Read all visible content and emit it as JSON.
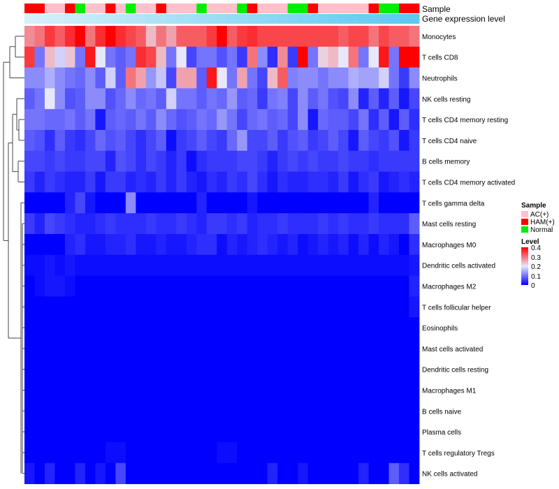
{
  "chart_data": {
    "type": "heatmap",
    "title": "",
    "annotation_labels": {
      "sample": "Sample",
      "gene_level": "Gene expression level"
    },
    "sample_colors": {
      "AC(+)": "#FFC0CB",
      "HAM(+)": "#FF0000",
      "Normal": "#00EE00"
    },
    "level_colors": {
      "low": "#0000FF",
      "mid": "#E8E8F8",
      "high": "#FF0000"
    },
    "gene_level_gradient": [
      "#D6F0FA",
      "#5DC8F0"
    ],
    "samples": [
      "HAM(+)",
      "HAM(+)",
      "AC(+)",
      "AC(+)",
      "HAM(+)",
      "Normal",
      "AC(+)",
      "AC(+)",
      "HAM(+)",
      "AC(+)",
      "Normal",
      "AC(+)",
      "AC(+)",
      "HAM(+)",
      "AC(+)",
      "AC(+)",
      "AC(+)",
      "Normal",
      "AC(+)",
      "AC(+)",
      "AC(+)",
      "Normal",
      "HAM(+)",
      "AC(+)",
      "AC(+)",
      "AC(+)",
      "Normal",
      "Normal",
      "HAM(+)",
      "AC(+)",
      "AC(+)",
      "AC(+)",
      "AC(+)",
      "AC(+)",
      "HAM(+)",
      "Normal",
      "Normal",
      "HAM(+)",
      "HAM(+)"
    ],
    "rows": [
      {
        "name": "Monocytes",
        "values": [
          0.28,
          0.3,
          0.35,
          0.32,
          0.36,
          0.4,
          0.3,
          0.36,
          0.4,
          0.36,
          0.34,
          0.32,
          0.24,
          0.3,
          0.26,
          0.32,
          0.32,
          0.32,
          0.35,
          0.4,
          0.32,
          0.35,
          0.36,
          0.34,
          0.34,
          0.34,
          0.34,
          0.34,
          0.34,
          0.34,
          0.34,
          0.32,
          0.34,
          0.34,
          0.3,
          0.34,
          0.32,
          0.32,
          0.3
        ]
      },
      {
        "name": "T cells CD8",
        "values": [
          0.35,
          0.1,
          0.24,
          0.18,
          0.23,
          0.1,
          0.38,
          0.2,
          0.1,
          0.08,
          0.1,
          0.36,
          0.34,
          0.24,
          0.1,
          0.2,
          0.06,
          0.1,
          0.1,
          0.07,
          0.1,
          0.05,
          0.3,
          0.12,
          0.04,
          0.28,
          0.05,
          0.4,
          0.1,
          0.22,
          0.24,
          0.2,
          0.3,
          0.1,
          0.2,
          0.38,
          0.1,
          0.4,
          0.4
        ]
      },
      {
        "name": "Neutrophils",
        "values": [
          0.12,
          0.12,
          0.15,
          0.12,
          0.1,
          0.09,
          0.12,
          0.08,
          0.18,
          0.08,
          0.3,
          0.26,
          0.13,
          0.17,
          0.06,
          0.26,
          0.26,
          0.08,
          0.38,
          0.2,
          0.1,
          0.26,
          0.1,
          0.06,
          0.24,
          0.32,
          0.11,
          0.12,
          0.12,
          0.1,
          0.12,
          0.12,
          0.15,
          0.14,
          0.14,
          0.18,
          0.1,
          0.05,
          0.12
        ]
      },
      {
        "name": "NK cells resting",
        "values": [
          0.08,
          0.1,
          0.2,
          0.12,
          0.07,
          0.08,
          0.12,
          0.12,
          0.07,
          0.09,
          0.12,
          0.09,
          0.1,
          0.08,
          0.18,
          0.1,
          0.1,
          0.08,
          0.1,
          0.09,
          0.13,
          0.08,
          0.09,
          0.05,
          0.1,
          0.11,
          0.06,
          0.12,
          0.08,
          0.1,
          0.07,
          0.06,
          0.12,
          0.03,
          0.08,
          0.03,
          0.08,
          0.02,
          0.06
        ]
      },
      {
        "name": "T cells CD4 memory resting",
        "values": [
          0.1,
          0.1,
          0.09,
          0.09,
          0.1,
          0.08,
          0.1,
          0.02,
          0.08,
          0.09,
          0.08,
          0.1,
          0.08,
          0.12,
          0.09,
          0.07,
          0.08,
          0.1,
          0.09,
          0.13,
          0.1,
          0.06,
          0.09,
          0.1,
          0.08,
          0.09,
          0.06,
          0.12,
          0.02,
          0.09,
          0.08,
          0.08,
          0.06,
          0.1,
          0.04,
          0.08,
          0.02,
          0.08,
          0.04
        ]
      },
      {
        "name": "T cells CD4 naive",
        "values": [
          0.08,
          0.07,
          0.04,
          0.08,
          0.05,
          0.04,
          0.06,
          0.09,
          0.07,
          0.08,
          0.06,
          0.04,
          0.06,
          0.08,
          0.01,
          0.05,
          0.06,
          0.08,
          0.06,
          0.05,
          0.09,
          0.13,
          0.06,
          0.06,
          0.08,
          0.05,
          0.07,
          0.08,
          0.05,
          0.06,
          0.08,
          0.06,
          0.02,
          0.08,
          0.06,
          0.05,
          0.07,
          0.02,
          0.05
        ]
      },
      {
        "name": "B cells memory",
        "values": [
          0.06,
          0.06,
          0.05,
          0.06,
          0.05,
          0.05,
          0.06,
          0.06,
          0.03,
          0.07,
          0.06,
          0.04,
          0.06,
          0.05,
          0.03,
          0.05,
          0.01,
          0.04,
          0.05,
          0.05,
          0.05,
          0.06,
          0.06,
          0.05,
          0.03,
          0.05,
          0.06,
          0.05,
          0.06,
          0.05,
          0.05,
          0.06,
          0.05,
          0.05,
          0.04,
          0.05,
          0.05,
          0.05,
          0.05
        ]
      },
      {
        "name": "T cells CD4 memory activated",
        "values": [
          0.05,
          0.03,
          0.05,
          0.04,
          0.03,
          0.03,
          0.05,
          0.02,
          0.05,
          0.05,
          0.03,
          0.04,
          0.03,
          0.05,
          0.03,
          0.05,
          0.03,
          0.02,
          0.04,
          0.03,
          0.05,
          0.04,
          0.06,
          0.04,
          0.02,
          0.04,
          0.03,
          0.03,
          0.04,
          0.04,
          0.03,
          0.05,
          0.02,
          0.04,
          0.05,
          0.02,
          0.03,
          0.04,
          0.03
        ]
      },
      {
        "name": "T cells gamma delta",
        "values": [
          0.0,
          0.0,
          0.0,
          0.0,
          0.03,
          0.06,
          0.02,
          0.0,
          0.0,
          0.0,
          0.12,
          0.0,
          0.0,
          0.0,
          0.0,
          0.0,
          0.0,
          0.03,
          0.0,
          0.0,
          0.0,
          0.0,
          0.02,
          0.0,
          0.0,
          0.0,
          0.0,
          0.0,
          0.0,
          0.0,
          0.0,
          0.0,
          0.0,
          0.0,
          0.03,
          0.0,
          0.0,
          0.0,
          0.0
        ]
      },
      {
        "name": "Mast cells resting",
        "values": [
          0.05,
          0.03,
          0.06,
          0.05,
          0.04,
          0.03,
          0.03,
          0.04,
          0.05,
          0.04,
          0.04,
          0.04,
          0.05,
          0.04,
          0.04,
          0.05,
          0.04,
          0.03,
          0.05,
          0.05,
          0.04,
          0.05,
          0.03,
          0.04,
          0.04,
          0.05,
          0.04,
          0.04,
          0.04,
          0.05,
          0.04,
          0.05,
          0.04,
          0.04,
          0.05,
          0.04,
          0.04,
          0.04,
          0.08
        ]
      },
      {
        "name": "Macrophages M0",
        "values": [
          0.0,
          0.0,
          0.0,
          0.0,
          0.03,
          0.04,
          0.02,
          0.02,
          0.03,
          0.03,
          0.04,
          0.02,
          0.02,
          0.03,
          0.02,
          0.02,
          0.03,
          0.04,
          0.04,
          0.01,
          0.03,
          0.02,
          0.03,
          0.04,
          0.03,
          0.02,
          0.03,
          0.01,
          0.02,
          0.03,
          0.02,
          0.03,
          0.01,
          0.03,
          0.01,
          0.03,
          0.02,
          0.0,
          0.04
        ]
      },
      {
        "name": "Dendritic cells activated",
        "values": [
          0.01,
          0.01,
          0.02,
          0.01,
          0.02,
          0.01,
          0.01,
          0.01,
          0.01,
          0.01,
          0.01,
          0.01,
          0.01,
          0.01,
          0.01,
          0.01,
          0.01,
          0.01,
          0.01,
          0.01,
          0.01,
          0.01,
          0.01,
          0.01,
          0.01,
          0.01,
          0.01,
          0.01,
          0.01,
          0.01,
          0.01,
          0.01,
          0.01,
          0.01,
          0.01,
          0.01,
          0.01,
          0.01,
          0.02
        ]
      },
      {
        "name": "Macrophages M2",
        "values": [
          0.0,
          0.01,
          0.02,
          0.02,
          0.01,
          0.0,
          0.0,
          0.0,
          0.0,
          0.0,
          0.0,
          0.0,
          0.0,
          0.0,
          0.0,
          0.0,
          0.0,
          0.0,
          0.0,
          0.0,
          0.0,
          0.0,
          0.0,
          0.0,
          0.0,
          0.0,
          0.0,
          0.0,
          0.0,
          0.0,
          0.0,
          0.0,
          0.0,
          0.0,
          0.0,
          0.0,
          0.0,
          0.0,
          0.03
        ]
      },
      {
        "name": "T cells follicular helper",
        "values": [
          0.0,
          0.0,
          0.0,
          0.0,
          0.0,
          0.0,
          0.0,
          0.0,
          0.0,
          0.0,
          0.0,
          0.0,
          0.0,
          0.0,
          0.0,
          0.0,
          0.0,
          0.0,
          0.0,
          0.0,
          0.0,
          0.0,
          0.0,
          0.0,
          0.0,
          0.0,
          0.0,
          0.0,
          0.0,
          0.0,
          0.0,
          0.0,
          0.0,
          0.0,
          0.0,
          0.0,
          0.0,
          0.0,
          0.02
        ]
      },
      {
        "name": "Eosinophils",
        "values": [
          0.0,
          0.0,
          0.0,
          0.0,
          0.0,
          0.0,
          0.0,
          0.0,
          0.0,
          0.0,
          0.0,
          0.0,
          0.0,
          0.0,
          0.0,
          0.0,
          0.0,
          0.0,
          0.0,
          0.0,
          0.0,
          0.0,
          0.0,
          0.0,
          0.0,
          0.0,
          0.0,
          0.0,
          0.0,
          0.0,
          0.0,
          0.0,
          0.0,
          0.0,
          0.0,
          0.0,
          0.0,
          0.0,
          0.0
        ]
      },
      {
        "name": "Mast cells activated",
        "values": [
          0.0,
          0.0,
          0.0,
          0.0,
          0.0,
          0.0,
          0.0,
          0.0,
          0.0,
          0.0,
          0.0,
          0.0,
          0.0,
          0.0,
          0.0,
          0.0,
          0.0,
          0.0,
          0.0,
          0.0,
          0.0,
          0.0,
          0.0,
          0.0,
          0.0,
          0.0,
          0.0,
          0.0,
          0.0,
          0.0,
          0.0,
          0.0,
          0.0,
          0.0,
          0.0,
          0.0,
          0.0,
          0.0,
          0.0
        ]
      },
      {
        "name": "Dendritic cells resting",
        "values": [
          0.0,
          0.0,
          0.0,
          0.0,
          0.0,
          0.0,
          0.0,
          0.0,
          0.0,
          0.0,
          0.0,
          0.0,
          0.0,
          0.0,
          0.0,
          0.0,
          0.0,
          0.0,
          0.0,
          0.0,
          0.0,
          0.0,
          0.0,
          0.0,
          0.0,
          0.0,
          0.0,
          0.0,
          0.0,
          0.0,
          0.0,
          0.0,
          0.0,
          0.0,
          0.0,
          0.0,
          0.0,
          0.0,
          0.0
        ]
      },
      {
        "name": "Macrophages M1",
        "values": [
          0.0,
          0.0,
          0.0,
          0.0,
          0.0,
          0.0,
          0.0,
          0.0,
          0.0,
          0.0,
          0.0,
          0.0,
          0.0,
          0.0,
          0.0,
          0.0,
          0.0,
          0.0,
          0.0,
          0.0,
          0.0,
          0.0,
          0.0,
          0.0,
          0.0,
          0.0,
          0.0,
          0.0,
          0.0,
          0.0,
          0.0,
          0.0,
          0.0,
          0.0,
          0.0,
          0.0,
          0.0,
          0.0,
          0.0
        ]
      },
      {
        "name": "B cells naive",
        "values": [
          0.0,
          0.0,
          0.0,
          0.0,
          0.0,
          0.0,
          0.0,
          0.0,
          0.0,
          0.0,
          0.0,
          0.0,
          0.0,
          0.0,
          0.0,
          0.0,
          0.0,
          0.0,
          0.0,
          0.0,
          0.0,
          0.0,
          0.0,
          0.0,
          0.0,
          0.0,
          0.0,
          0.0,
          0.0,
          0.0,
          0.0,
          0.0,
          0.0,
          0.0,
          0.0,
          0.0,
          0.0,
          0.0,
          0.0
        ]
      },
      {
        "name": "Plasma cells",
        "values": [
          0.0,
          0.0,
          0.0,
          0.0,
          0.0,
          0.0,
          0.0,
          0.0,
          0.0,
          0.0,
          0.0,
          0.0,
          0.0,
          0.0,
          0.0,
          0.0,
          0.0,
          0.0,
          0.0,
          0.0,
          0.0,
          0.0,
          0.0,
          0.0,
          0.0,
          0.0,
          0.0,
          0.0,
          0.0,
          0.0,
          0.0,
          0.0,
          0.0,
          0.0,
          0.0,
          0.0,
          0.0,
          0.0,
          0.0
        ]
      },
      {
        "name": "T cells regulatory  Tregs",
        "values": [
          0.0,
          0.0,
          0.0,
          0.0,
          0.0,
          0.0,
          0.0,
          0.0,
          0.01,
          0.01,
          0.0,
          0.0,
          0.0,
          0.0,
          0.0,
          0.0,
          0.0,
          0.0,
          0.0,
          0.01,
          0.01,
          0.0,
          0.0,
          0.0,
          0.0,
          0.0,
          0.0,
          0.0,
          0.0,
          0.0,
          0.0,
          0.0,
          0.0,
          0.0,
          0.0,
          0.0,
          0.0,
          0.0,
          0.0
        ]
      },
      {
        "name": "NK cells activated",
        "values": [
          0.02,
          0.0,
          0.03,
          0.0,
          0.0,
          0.03,
          0.0,
          0.02,
          0.0,
          0.06,
          0.0,
          0.0,
          0.0,
          0.0,
          0.0,
          0.0,
          0.0,
          0.0,
          0.0,
          0.0,
          0.0,
          0.0,
          0.0,
          0.0,
          0.03,
          0.0,
          0.0,
          0.02,
          0.0,
          0.0,
          0.0,
          0.0,
          0.0,
          0.03,
          0.0,
          0.0,
          0.08,
          0.04,
          0.0
        ]
      }
    ],
    "legend": {
      "sample_title": "Sample",
      "sample_entries": [
        "AC(+)",
        "HAM(+)",
        "Normal"
      ],
      "level_title": "Level",
      "level_ticks": [
        "0.4",
        "0.3",
        "0.2",
        "0.1",
        "0"
      ],
      "level_range": [
        0,
        0.4
      ]
    }
  }
}
